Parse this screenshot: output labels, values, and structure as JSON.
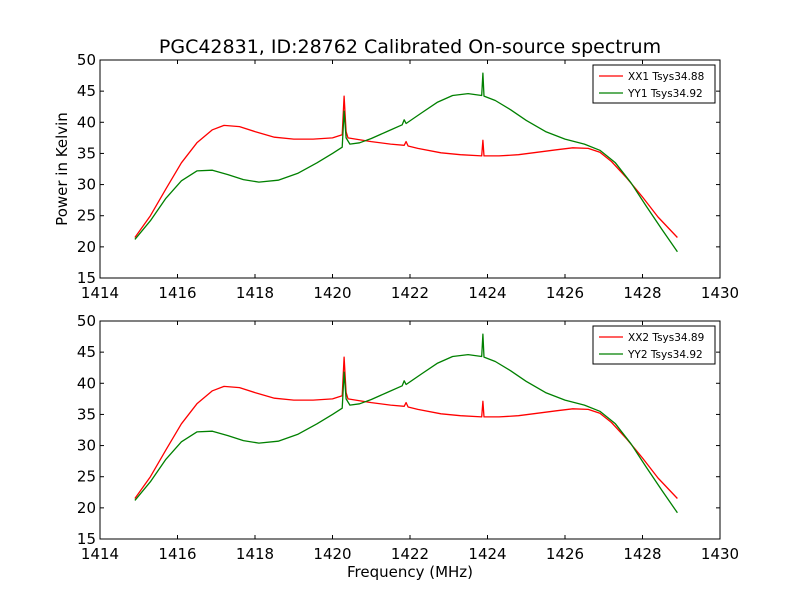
{
  "title": "PGC42831, ID:28762 Calibrated On-source spectrum",
  "chart_data": [
    {
      "type": "line",
      "title": "PGC42831, ID:28762 Calibrated On-source spectrum",
      "xlabel": "",
      "ylabel": "Power in Kelvin",
      "xlim": [
        1414,
        1430
      ],
      "ylim": [
        15,
        50
      ],
      "xticks": [
        1414,
        1416,
        1418,
        1420,
        1422,
        1424,
        1426,
        1428,
        1430
      ],
      "yticks": [
        15,
        20,
        25,
        30,
        35,
        40,
        45,
        50
      ],
      "grid": false,
      "legend_position": "top-right",
      "series": [
        {
          "name": "XX1 Tsys34.88",
          "color": "#ff0000",
          "x": [
            1414.9,
            1415.3,
            1415.7,
            1416.1,
            1416.5,
            1416.9,
            1417.2,
            1417.6,
            1418.0,
            1418.5,
            1419.0,
            1419.5,
            1420.0,
            1420.25,
            1420.3,
            1420.35,
            1420.4,
            1420.6,
            1421.0,
            1421.5,
            1421.85,
            1421.9,
            1421.95,
            1422.2,
            1422.8,
            1423.3,
            1423.85,
            1423.88,
            1423.91,
            1424.3,
            1424.8,
            1425.3,
            1425.8,
            1426.2,
            1426.6,
            1426.9,
            1427.2,
            1427.6,
            1428.0,
            1428.4,
            1428.9
          ],
          "y": [
            21.5,
            25.0,
            29.3,
            33.5,
            36.7,
            38.8,
            39.5,
            39.3,
            38.5,
            37.6,
            37.3,
            37.3,
            37.5,
            38.0,
            44.2,
            38.5,
            37.5,
            37.3,
            36.9,
            36.5,
            36.3,
            36.9,
            36.2,
            35.8,
            35.1,
            34.8,
            34.6,
            37.1,
            34.6,
            34.6,
            34.8,
            35.2,
            35.6,
            35.9,
            35.8,
            35.2,
            33.7,
            31.0,
            28.0,
            24.8,
            21.5
          ]
        },
        {
          "name": "YY1 Tsys34.92",
          "color": "#008000",
          "x": [
            1414.9,
            1415.3,
            1415.7,
            1416.1,
            1416.5,
            1416.9,
            1417.3,
            1417.7,
            1418.1,
            1418.6,
            1419.1,
            1419.6,
            1420.0,
            1420.25,
            1420.3,
            1420.35,
            1420.45,
            1420.7,
            1421.0,
            1421.4,
            1421.8,
            1421.85,
            1421.9,
            1422.3,
            1422.7,
            1423.1,
            1423.5,
            1423.85,
            1423.88,
            1423.91,
            1424.2,
            1424.6,
            1425.0,
            1425.5,
            1426.0,
            1426.5,
            1426.9,
            1427.3,
            1427.7,
            1428.1,
            1428.5,
            1428.9
          ],
          "y": [
            21.2,
            24.2,
            27.8,
            30.6,
            32.2,
            32.3,
            31.6,
            30.8,
            30.4,
            30.7,
            31.8,
            33.5,
            35.0,
            36.0,
            41.8,
            37.5,
            36.5,
            36.7,
            37.4,
            38.5,
            39.6,
            40.4,
            39.8,
            41.5,
            43.2,
            44.3,
            44.6,
            44.3,
            47.9,
            44.2,
            43.5,
            42.0,
            40.3,
            38.5,
            37.3,
            36.5,
            35.5,
            33.5,
            30.3,
            26.5,
            22.8,
            19.2
          ]
        }
      ]
    },
    {
      "type": "line",
      "title": "",
      "xlabel": "Frequency (MHz)",
      "ylabel": "",
      "xlim": [
        1414,
        1430
      ],
      "ylim": [
        15,
        50
      ],
      "xticks": [
        1414,
        1416,
        1418,
        1420,
        1422,
        1424,
        1426,
        1428,
        1430
      ],
      "yticks": [
        15,
        20,
        25,
        30,
        35,
        40,
        45,
        50
      ],
      "grid": false,
      "legend_position": "top-right",
      "series": [
        {
          "name": "XX2 Tsys34.89",
          "color": "#ff0000",
          "x": [
            1414.9,
            1415.3,
            1415.7,
            1416.1,
            1416.5,
            1416.9,
            1417.2,
            1417.6,
            1418.0,
            1418.5,
            1419.0,
            1419.5,
            1420.0,
            1420.25,
            1420.3,
            1420.35,
            1420.4,
            1420.6,
            1421.0,
            1421.5,
            1421.85,
            1421.9,
            1421.95,
            1422.2,
            1422.8,
            1423.3,
            1423.85,
            1423.88,
            1423.91,
            1424.3,
            1424.8,
            1425.3,
            1425.8,
            1426.2,
            1426.6,
            1426.9,
            1427.2,
            1427.6,
            1428.0,
            1428.4,
            1428.9
          ],
          "y": [
            21.5,
            25.0,
            29.3,
            33.5,
            36.7,
            38.8,
            39.5,
            39.3,
            38.5,
            37.6,
            37.3,
            37.3,
            37.5,
            38.0,
            44.2,
            38.5,
            37.5,
            37.3,
            36.9,
            36.5,
            36.3,
            36.9,
            36.2,
            35.8,
            35.1,
            34.8,
            34.6,
            37.1,
            34.6,
            34.6,
            34.8,
            35.2,
            35.6,
            35.9,
            35.8,
            35.2,
            33.7,
            31.0,
            28.0,
            24.8,
            21.5
          ]
        },
        {
          "name": "YY2 Tsys34.92",
          "color": "#008000",
          "x": [
            1414.9,
            1415.3,
            1415.7,
            1416.1,
            1416.5,
            1416.9,
            1417.3,
            1417.7,
            1418.1,
            1418.6,
            1419.1,
            1419.6,
            1420.0,
            1420.25,
            1420.3,
            1420.35,
            1420.45,
            1420.7,
            1421.0,
            1421.4,
            1421.8,
            1421.85,
            1421.9,
            1422.3,
            1422.7,
            1423.1,
            1423.5,
            1423.85,
            1423.88,
            1423.91,
            1424.2,
            1424.6,
            1425.0,
            1425.5,
            1426.0,
            1426.5,
            1426.9,
            1427.3,
            1427.7,
            1428.1,
            1428.5,
            1428.9
          ],
          "y": [
            21.2,
            24.2,
            27.8,
            30.6,
            32.2,
            32.3,
            31.6,
            30.8,
            30.4,
            30.7,
            31.8,
            33.5,
            35.0,
            36.0,
            41.8,
            37.5,
            36.5,
            36.7,
            37.4,
            38.5,
            39.6,
            40.4,
            39.8,
            41.5,
            43.2,
            44.3,
            44.6,
            44.3,
            47.9,
            44.2,
            43.5,
            42.0,
            40.3,
            38.5,
            37.3,
            36.5,
            35.5,
            33.5,
            30.3,
            26.5,
            22.8,
            19.2
          ]
        }
      ]
    }
  ]
}
